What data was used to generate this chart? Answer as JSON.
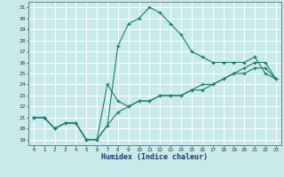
{
  "xlabel": "Humidex (Indice chaleur)",
  "bg_color": "#c8eaea",
  "grid_color": "#ffffff",
  "line_color": "#1a7a6e",
  "xlim": [
    -0.5,
    23.5
  ],
  "ylim": [
    18.5,
    31.5
  ],
  "xticks": [
    0,
    1,
    2,
    3,
    4,
    5,
    6,
    7,
    8,
    9,
    10,
    11,
    12,
    13,
    14,
    15,
    16,
    17,
    18,
    19,
    20,
    21,
    22,
    23
  ],
  "yticks": [
    19,
    20,
    21,
    22,
    23,
    24,
    25,
    26,
    27,
    28,
    29,
    30,
    31
  ],
  "line1_x": [
    0,
    1,
    2,
    3,
    4,
    5,
    6,
    7,
    8,
    9,
    10,
    11,
    12,
    13,
    14,
    15,
    16,
    17,
    18,
    19,
    20,
    21,
    22,
    23
  ],
  "line1_y": [
    21,
    21,
    20,
    20.5,
    20.5,
    19,
    19,
    20.3,
    27.5,
    29.5,
    30,
    31,
    30.5,
    29.5,
    28.5,
    27,
    26.5,
    26,
    26,
    26,
    26,
    26.5,
    25,
    24.5
  ],
  "line2_x": [
    0,
    1,
    2,
    3,
    4,
    5,
    6,
    7,
    8,
    9,
    10,
    11,
    12,
    13,
    14,
    15,
    16,
    17,
    18,
    19,
    20,
    21,
    22,
    23
  ],
  "line2_y": [
    21,
    21,
    20,
    20.5,
    20.5,
    19,
    19,
    20.3,
    21.5,
    22,
    22.5,
    22.5,
    23,
    23,
    23,
    23.5,
    24,
    24,
    24.5,
    25,
    25.5,
    26,
    26,
    24.5
  ],
  "line3_x": [
    0,
    1,
    2,
    3,
    4,
    5,
    6,
    7,
    8,
    9,
    10,
    11,
    12,
    13,
    14,
    15,
    16,
    17,
    18,
    19,
    20,
    21,
    22,
    23
  ],
  "line3_y": [
    21,
    21,
    20,
    20.5,
    20.5,
    19,
    19,
    24,
    22.5,
    22,
    22.5,
    22.5,
    23,
    23,
    23,
    23.5,
    23.5,
    24,
    24.5,
    25,
    25,
    25.5,
    25.5,
    24.5
  ]
}
